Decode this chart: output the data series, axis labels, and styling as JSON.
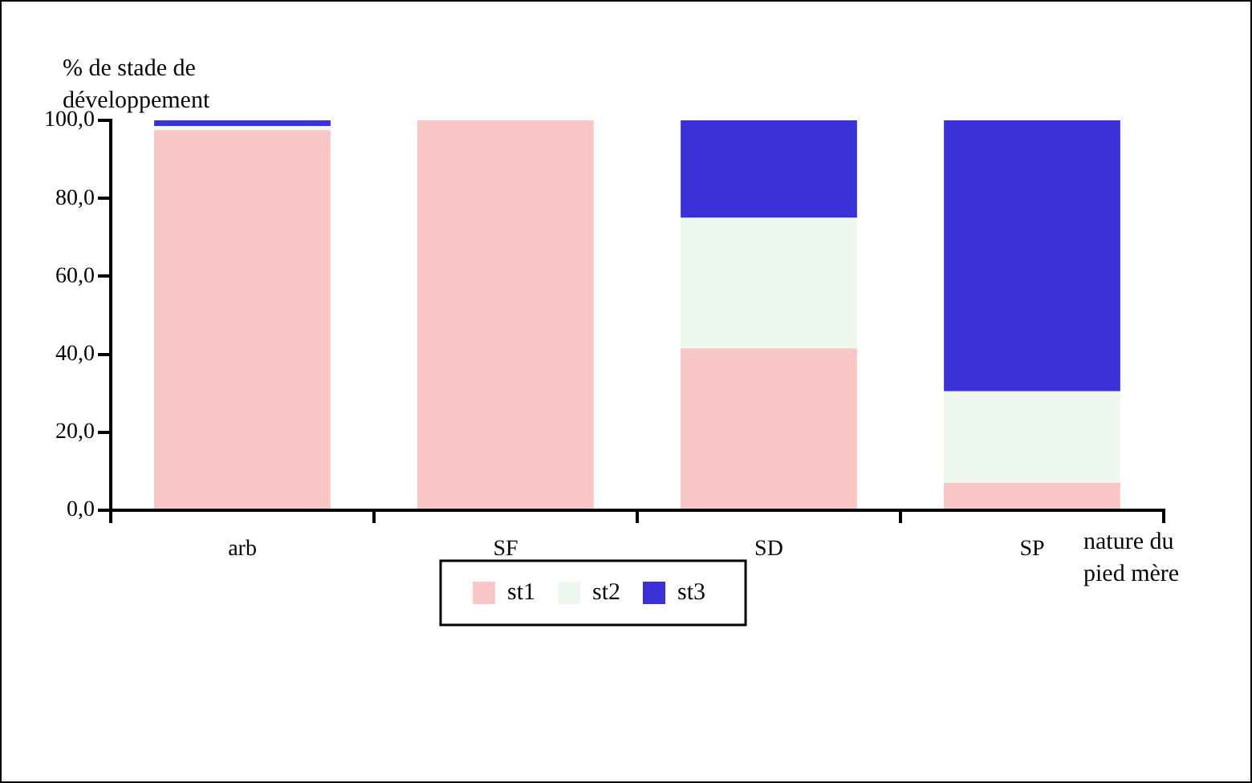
{
  "chart_data": {
    "type": "bar",
    "stacked": true,
    "ylabel": "% de stade de développement",
    "xlabel": "nature du pied mère",
    "categories": [
      "arb",
      "SF",
      "SD",
      "SP"
    ],
    "series": [
      {
        "name": "st1",
        "color": "#f9c6c6",
        "values": [
          97.5,
          100,
          41.5,
          7
        ]
      },
      {
        "name": "st2",
        "color": "#eef8ee",
        "values": [
          1,
          0,
          33.5,
          23.5
        ]
      },
      {
        "name": "st3",
        "color": "#3a32d8",
        "values": [
          1.5,
          0,
          25,
          69.5
        ]
      }
    ],
    "ylim": [
      0,
      100
    ],
    "yticks": [
      {
        "value": 0,
        "label": "0,0"
      },
      {
        "value": 20,
        "label": "20,0"
      },
      {
        "value": 40,
        "label": "40,0"
      },
      {
        "value": 60,
        "label": "60,0"
      },
      {
        "value": 80,
        "label": "80,0"
      },
      {
        "value": 100,
        "label": "100,0"
      }
    ],
    "grid": false,
    "legend": "bottom"
  }
}
